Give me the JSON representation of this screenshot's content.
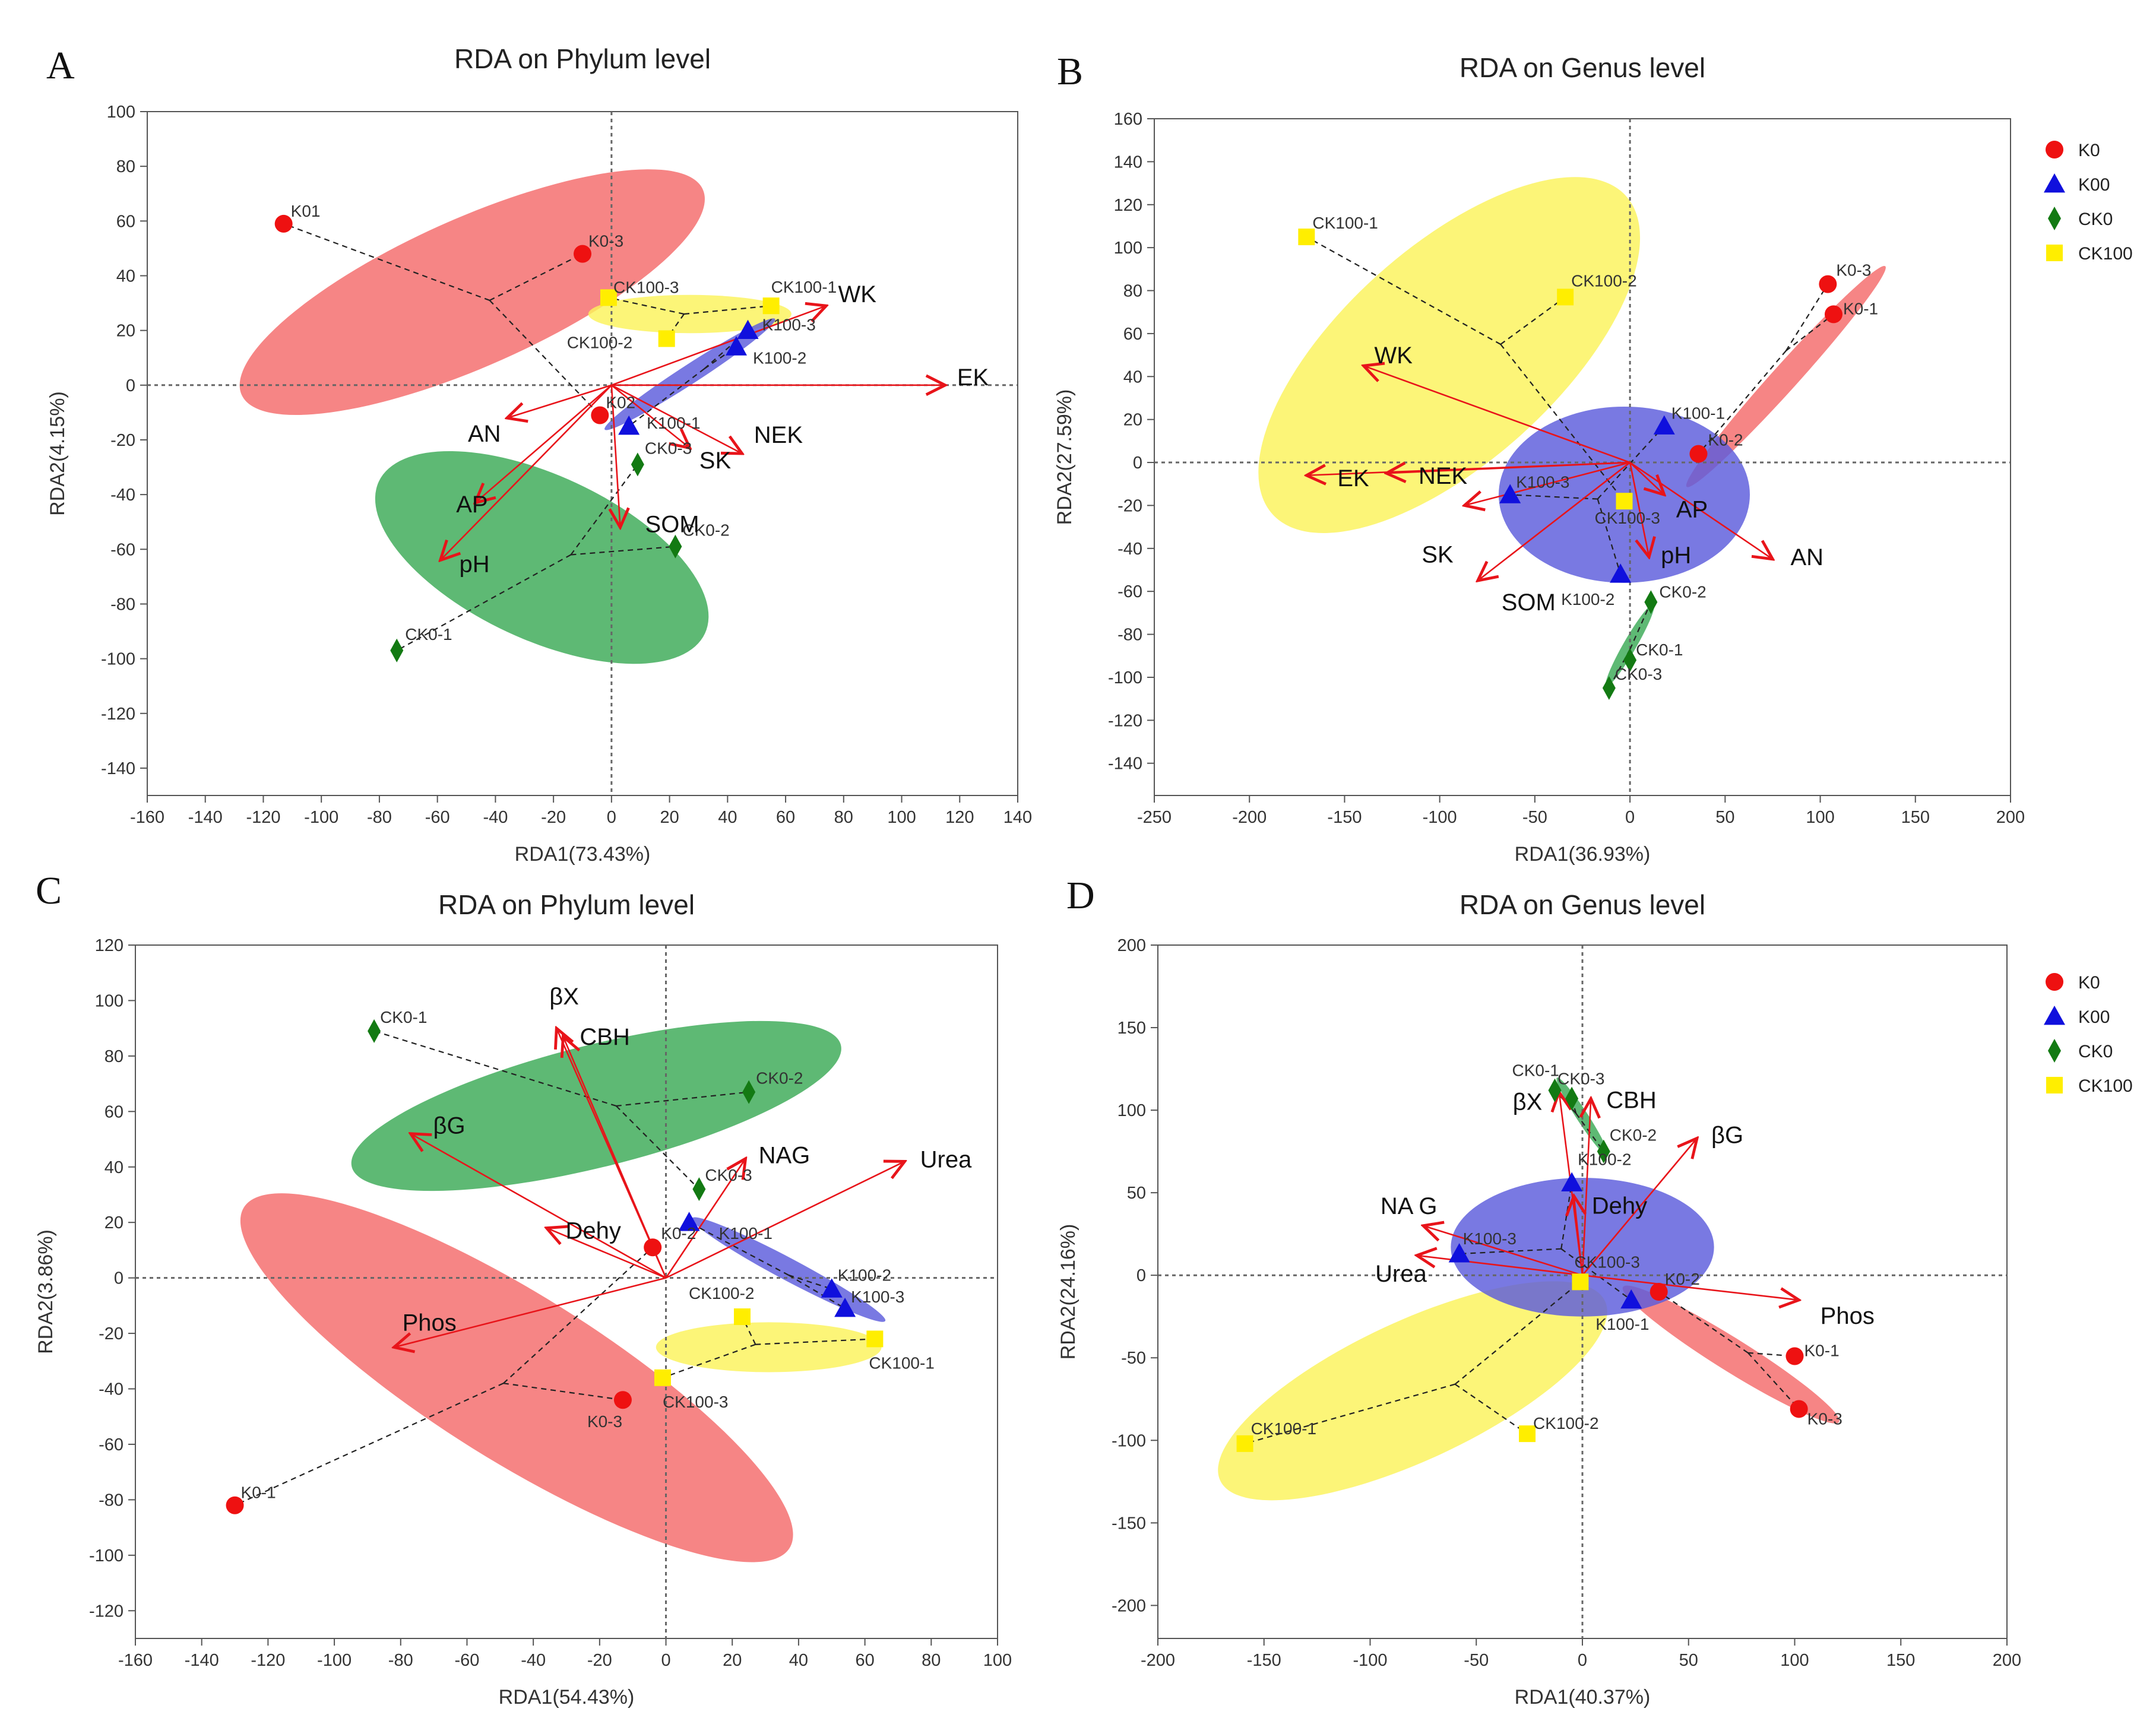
{
  "colors": {
    "K0": "#ee1111",
    "K00": "#1010dd",
    "CK0": "#137a13",
    "CK100": "#ffee00",
    "ellipse_K0": "#f46a6a",
    "ellipse_K00": "#5c5cdc",
    "ellipse_CK0": "#3aaa55",
    "ellipse_CK100": "#fbf35a",
    "arrow": "#e8141a"
  },
  "legend": [
    {
      "label": "K0",
      "group": "K0",
      "shape": "circle"
    },
    {
      "label": "K00",
      "group": "K00",
      "shape": "triangle"
    },
    {
      "label": "CK0",
      "group": "CK0",
      "shape": "diamond"
    },
    {
      "label": "CK100",
      "group": "CK100",
      "shape": "square"
    }
  ],
  "chart_data": [
    {
      "panel": "A",
      "type": "scatter",
      "title": "RDA on Phylum level",
      "xlabel": "RDA1(73.43%)",
      "ylabel": "RDA2(4.15%)",
      "xlim": [
        -160,
        140
      ],
      "ylim": [
        -150,
        100
      ],
      "xticks": [
        -160,
        -140,
        -120,
        -100,
        -80,
        -60,
        -40,
        -20,
        0,
        20,
        40,
        60,
        80,
        100,
        120,
        140
      ],
      "yticks": [
        -140,
        -120,
        -100,
        -80,
        -60,
        -40,
        -20,
        0,
        20,
        40,
        60,
        80,
        100
      ],
      "show_legend": false,
      "points": [
        {
          "label": "K01",
          "group": "K0",
          "x": -113,
          "y": 59
        },
        {
          "label": "K0-3",
          "group": "K0",
          "x": -10,
          "y": 48
        },
        {
          "label": "K02",
          "group": "K0",
          "x": -4,
          "y": -11
        },
        {
          "label": "K100-3",
          "group": "K00",
          "x": 47,
          "y": 20
        },
        {
          "label": "K100-2",
          "group": "K00",
          "x": 43,
          "y": 14
        },
        {
          "label": "K100-1",
          "group": "K00",
          "x": 6,
          "y": -15
        },
        {
          "label": "CK0-3",
          "group": "CK0",
          "x": 9,
          "y": -29
        },
        {
          "label": "CK0-2",
          "group": "CK0",
          "x": 22,
          "y": -59
        },
        {
          "label": "CK0-1",
          "group": "CK0",
          "x": -74,
          "y": -97
        },
        {
          "label": "CK100-1",
          "group": "CK100",
          "x": 55,
          "y": 29
        },
        {
          "label": "CK100-3",
          "group": "CK100",
          "x": -1,
          "y": 32
        },
        {
          "label": "CK100-2",
          "group": "CK100",
          "x": 19,
          "y": 17
        }
      ],
      "ellipses": [
        {
          "group": "K0",
          "cx": -48,
          "cy": 34,
          "rx": 87,
          "ry": 27,
          "angle": -24
        },
        {
          "group": "CK100",
          "cx": 27,
          "cy": 26,
          "rx": 35,
          "ry": 7,
          "angle": 0
        },
        {
          "group": "K00",
          "cx": 27,
          "cy": 4,
          "rx": 35,
          "ry": 3.5,
          "angle": -33
        },
        {
          "group": "CK0",
          "cx": -24,
          "cy": -63,
          "rx": 62,
          "ry": 30,
          "angle": 25
        }
      ],
      "spiders": [
        {
          "center": [
            -42,
            31
          ],
          "members": [
            [
              -113,
              59
            ],
            [
              -10,
              48
            ],
            [
              -4,
              -11
            ]
          ],
          "via": [
            -15,
            3
          ]
        },
        {
          "center": [
            25,
            26
          ],
          "members": [
            [
              55,
              29
            ],
            [
              -1,
              32
            ],
            [
              19,
              17
            ]
          ]
        },
        {
          "center": [
            32,
            6
          ],
          "members": [
            [
              47,
              20
            ],
            [
              43,
              14
            ],
            [
              6,
              -15
            ]
          ]
        },
        {
          "center": [
            -14,
            -62
          ],
          "members": [
            [
              9,
              -29
            ],
            [
              22,
              -59
            ],
            [
              -74,
              -97
            ]
          ]
        }
      ],
      "arrows": [
        {
          "label": "EK",
          "x": 115,
          "y": 0
        },
        {
          "label": "WK",
          "x": 74,
          "y": 29
        },
        {
          "label": "NEK",
          "x": 45,
          "y": -25
        },
        {
          "label": "SK",
          "x": 27,
          "y": -23
        },
        {
          "label": "SOM",
          "x": 3,
          "y": -52
        },
        {
          "label": "AN",
          "x": -36,
          "y": -12
        },
        {
          "label": "AP",
          "x": -47,
          "y": -43
        },
        {
          "label": "pH",
          "x": -59,
          "y": -64
        }
      ]
    },
    {
      "panel": "B",
      "type": "scatter",
      "title": "RDA on Genus level",
      "xlabel": "RDA1(36.93%)",
      "ylabel": "RDA2(27.59%)",
      "xlim": [
        -250,
        200
      ],
      "ylim": [
        -155,
        160
      ],
      "xticks": [
        -250,
        -200,
        -150,
        -100,
        -50,
        0,
        50,
        100,
        150,
        200
      ],
      "yticks": [
        -140,
        -120,
        -100,
        -80,
        -60,
        -40,
        -20,
        0,
        20,
        40,
        60,
        80,
        100,
        120,
        140,
        160
      ],
      "show_legend": true,
      "points": [
        {
          "label": "K0-3",
          "group": "K0",
          "x": 104,
          "y": 83
        },
        {
          "label": "K0-1",
          "group": "K0",
          "x": 107,
          "y": 69
        },
        {
          "label": "K0-2",
          "group": "K0",
          "x": 36,
          "y": 4
        },
        {
          "label": "K100-1",
          "group": "K00",
          "x": 18,
          "y": 17
        },
        {
          "label": "K100-3",
          "group": "K00",
          "x": -63,
          "y": -15
        },
        {
          "label": "K100-2",
          "group": "K00",
          "x": -5,
          "y": -52
        },
        {
          "label": "CK0-2",
          "group": "CK0",
          "x": 11,
          "y": -65
        },
        {
          "label": "CK0-1",
          "group": "CK0",
          "x": 0,
          "y": -92
        },
        {
          "label": "CK0-3",
          "group": "CK0",
          "x": -11,
          "y": -105
        },
        {
          "label": "CK100-1",
          "group": "CK100",
          "x": -170,
          "y": 105
        },
        {
          "label": "CK100-2",
          "group": "CK100",
          "x": -34,
          "y": 77
        },
        {
          "label": "CK100-3",
          "group": "CK100",
          "x": -3,
          "y": -18
        }
      ],
      "ellipses": [
        {
          "group": "CK100",
          "cx": -95,
          "cy": 50,
          "rx": 125,
          "ry": 50,
          "angle": -42
        },
        {
          "group": "K0",
          "cx": 82,
          "cy": 40,
          "rx": 78,
          "ry": 6,
          "angle": -48
        },
        {
          "group": "K00",
          "cx": -3,
          "cy": -15,
          "rx": 66,
          "ry": 41,
          "angle": 0
        },
        {
          "group": "CK0",
          "cx": 0,
          "cy": -85,
          "rx": 25,
          "ry": 3,
          "angle": -60
        }
      ],
      "spiders": [
        {
          "center": [
            -68,
            55
          ],
          "members": [
            [
              -170,
              105
            ],
            [
              -34,
              77
            ],
            [
              -3,
              -18
            ]
          ]
        },
        {
          "center": [
            82,
            52
          ],
          "members": [
            [
              104,
              83
            ],
            [
              107,
              69
            ],
            [
              36,
              4
            ]
          ]
        },
        {
          "center": [
            -17,
            -17
          ],
          "members": [
            [
              18,
              17
            ],
            [
              -63,
              -15
            ],
            [
              -5,
              -52
            ]
          ]
        },
        {
          "center": [
            0,
            -87
          ],
          "members": [
            [
              11,
              -65
            ],
            [
              0,
              -92
            ],
            [
              -11,
              -105
            ]
          ]
        }
      ],
      "arrows": [
        {
          "label": "WK",
          "x": -140,
          "y": 45
        },
        {
          "label": "EK",
          "x": -170,
          "y": -6
        },
        {
          "label": "NEK",
          "x": -128,
          "y": -5
        },
        {
          "label": "SK",
          "x": -87,
          "y": -20
        },
        {
          "label": "SOM",
          "x": -80,
          "y": -55
        },
        {
          "label": "AP",
          "x": 18,
          "y": -15
        },
        {
          "label": "pH",
          "x": 10,
          "y": -44
        },
        {
          "label": "AN",
          "x": 75,
          "y": -45
        }
      ]
    },
    {
      "panel": "C",
      "type": "scatter",
      "title": "RDA on Phylum level",
      "xlabel": "RDA1(54.43%)",
      "ylabel": "RDA2(3.86%)",
      "xlim": [
        -160,
        100
      ],
      "ylim": [
        -130,
        120
      ],
      "xticks": [
        -160,
        -140,
        -120,
        -100,
        -80,
        -60,
        -40,
        -20,
        0,
        20,
        40,
        60,
        80,
        100
      ],
      "yticks": [
        -120,
        -100,
        -80,
        -60,
        -40,
        -20,
        0,
        20,
        40,
        60,
        80,
        100,
        120
      ],
      "show_legend": false,
      "points": [
        {
          "label": "CK0-1",
          "group": "CK0",
          "x": -88,
          "y": 89
        },
        {
          "label": "CK0-2",
          "group": "CK0",
          "x": 25,
          "y": 67
        },
        {
          "label": "CK0-3",
          "group": "CK0",
          "x": 10,
          "y": 32
        },
        {
          "label": "K0-2",
          "group": "K0",
          "x": -4,
          "y": 11
        },
        {
          "label": "K0-3",
          "group": "K0",
          "x": -13,
          "y": -44
        },
        {
          "label": "K0-1",
          "group": "K0",
          "x": -130,
          "y": -82
        },
        {
          "label": "K100-1",
          "group": "K00",
          "x": 7,
          "y": 20
        },
        {
          "label": "K100-2",
          "group": "K00",
          "x": 50,
          "y": -4
        },
        {
          "label": "K100-3",
          "group": "K00",
          "x": 54,
          "y": -11
        },
        {
          "label": "CK100-2",
          "group": "CK100",
          "x": 23,
          "y": -14
        },
        {
          "label": "CK100-1",
          "group": "CK100",
          "x": 63,
          "y": -22
        },
        {
          "label": "CK100-3",
          "group": "CK100",
          "x": -1,
          "y": -36
        }
      ],
      "ellipses": [
        {
          "group": "CK0",
          "cx": -21,
          "cy": 62,
          "rx": 76,
          "ry": 22,
          "angle": -14
        },
        {
          "group": "K0",
          "cx": -45,
          "cy": -36,
          "rx": 97,
          "ry": 30,
          "angle": 32
        },
        {
          "group": "CK100",
          "cx": 31,
          "cy": -25,
          "rx": 34,
          "ry": 9,
          "angle": 0
        },
        {
          "group": "K00",
          "cx": 37,
          "cy": 3,
          "rx": 33,
          "ry": 4,
          "angle": 28
        }
      ],
      "spiders": [
        {
          "center": [
            -15,
            62
          ],
          "members": [
            [
              -88,
              89
            ],
            [
              25,
              67
            ],
            [
              10,
              32
            ]
          ]
        },
        {
          "center": [
            -49,
            -38
          ],
          "members": [
            [
              -4,
              11
            ],
            [
              -13,
              -44
            ],
            [
              -130,
              -82
            ]
          ]
        },
        {
          "center": [
            27,
            -24
          ],
          "members": [
            [
              23,
              -14
            ],
            [
              63,
              -22
            ],
            [
              -1,
              -36
            ]
          ]
        },
        {
          "center": [
            37,
            1
          ],
          "members": [
            [
              7,
              20
            ],
            [
              50,
              -4
            ],
            [
              54,
              -11
            ]
          ]
        }
      ],
      "arrows": [
        {
          "label": "βX",
          "x": -33,
          "y": 90
        },
        {
          "label": "CBH",
          "x": -31,
          "y": 87
        },
        {
          "label": "βG",
          "x": -77,
          "y": 52
        },
        {
          "label": "NAG",
          "x": 24,
          "y": 43
        },
        {
          "label": "Urea",
          "x": 72,
          "y": 42
        },
        {
          "label": "Dehy",
          "x": -36,
          "y": 18
        },
        {
          "label": "Phos",
          "x": -82,
          "y": -25
        }
      ]
    },
    {
      "panel": "D",
      "type": "scatter",
      "title": "RDA on Genus level",
      "xlabel": "RDA1(40.37%)",
      "ylabel": "RDA2(24.16%)",
      "xlim": [
        -200,
        200
      ],
      "ylim": [
        -220,
        200
      ],
      "xticks": [
        -200,
        -150,
        -100,
        -50,
        0,
        50,
        100,
        150,
        200
      ],
      "yticks": [
        -200,
        -150,
        -100,
        -50,
        0,
        50,
        100,
        150,
        200
      ],
      "show_legend": true,
      "points": [
        {
          "label": "CK0-1",
          "group": "CK0",
          "x": -13,
          "y": 112
        },
        {
          "label": "CK0-3",
          "group": "CK0",
          "x": -5,
          "y": 107
        },
        {
          "label": "CK0-2",
          "group": "CK0",
          "x": 10,
          "y": 75
        },
        {
          "label": "K100-2",
          "group": "K00",
          "x": -5,
          "y": 56
        },
        {
          "label": "K100-3",
          "group": "K00",
          "x": -58,
          "y": 13
        },
        {
          "label": "K100-1",
          "group": "K00",
          "x": 23,
          "y": -15
        },
        {
          "label": "K0-2",
          "group": "K0",
          "x": 36,
          "y": -10
        },
        {
          "label": "K0-1",
          "group": "K0",
          "x": 100,
          "y": -49
        },
        {
          "label": "K0-3",
          "group": "K0",
          "x": 102,
          "y": -81
        },
        {
          "label": "CK100-3",
          "group": "CK100",
          "x": -1,
          "y": -4
        },
        {
          "label": "CK100-2",
          "group": "CK100",
          "x": -26,
          "y": -96
        },
        {
          "label": "CK100-1",
          "group": "CK100",
          "x": -159,
          "y": -102
        }
      ],
      "ellipses": [
        {
          "group": "CK100",
          "cx": -80,
          "cy": -70,
          "rx": 100,
          "ry": 42,
          "angle": -25
        },
        {
          "group": "K0",
          "cx": 70,
          "cy": -48,
          "rx": 60,
          "ry": 10,
          "angle": 32
        },
        {
          "group": "K00",
          "cx": 0,
          "cy": 17,
          "rx": 62,
          "ry": 42,
          "angle": 0
        },
        {
          "group": "CK0",
          "cx": 0,
          "cy": 96,
          "rx": 22,
          "ry": 3.5,
          "angle": 57
        }
      ],
      "spiders": [
        {
          "center": [
            -60,
            -66
          ],
          "members": [
            [
              -1,
              -4
            ],
            [
              -26,
              -96
            ],
            [
              -159,
              -102
            ]
          ]
        },
        {
          "center": [
            -10,
            16
          ],
          "members": [
            [
              -5,
              56
            ],
            [
              -58,
              13
            ],
            [
              23,
              -15
            ]
          ]
        },
        {
          "center": [
            78,
            -47
          ],
          "members": [
            [
              36,
              -10
            ],
            [
              100,
              -49
            ],
            [
              102,
              -81
            ]
          ]
        },
        {
          "center": [
            -3,
            98
          ],
          "members": [
            [
              -13,
              112
            ],
            [
              -5,
              107
            ],
            [
              10,
              75
            ]
          ]
        }
      ],
      "arrows": [
        {
          "label": "CBH",
          "x": 4,
          "y": 107
        },
        {
          "label": "βX",
          "x": -11,
          "y": 111
        },
        {
          "label": "βG",
          "x": 54,
          "y": 83
        },
        {
          "label": "Dehy",
          "x": -4,
          "y": 48
        },
        {
          "label": "NA G",
          "x": -75,
          "y": 30
        },
        {
          "label": "Urea",
          "x": -78,
          "y": 12
        },
        {
          "label": "Phos",
          "x": 102,
          "y": -15
        }
      ]
    }
  ]
}
